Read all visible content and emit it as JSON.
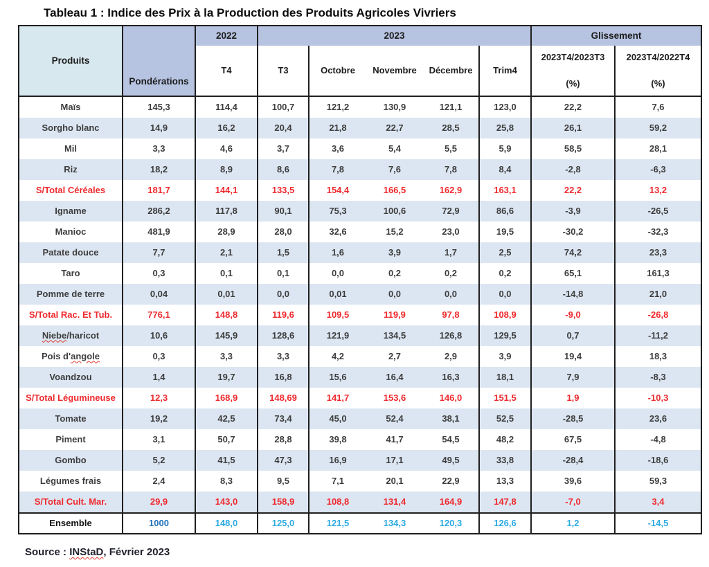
{
  "title": "Tableau 1 : Indice des Prix à la Production des Produits Agricoles Vivriers",
  "source": {
    "prefix": "Source : ",
    "org": "INStaD",
    "suffix": ", Février 2023"
  },
  "colors": {
    "periwinkle": "#b7c4e1",
    "palecyan": "#d7e8ee",
    "stripe": "#dce6f2",
    "ink": "#3d3d3d",
    "red": "#ee2a2e",
    "cyan": "#2baae2",
    "darkblue": "#2272b8"
  },
  "table": {
    "col_groups": {
      "y2022": "2022",
      "y2023": "2023",
      "glissement": "Glissement"
    },
    "headers": {
      "produits": "Produits",
      "ponderations": "Pondérations",
      "t4": "T4",
      "t3": "T3",
      "octobre": "Octobre",
      "novembre": "Novembre",
      "decembre": "Décembre",
      "trim4": "Trim4",
      "g1_line1": "2023T4/2023T3",
      "g2_line1": "2023T4/2022T4",
      "g_pct": "(%)"
    },
    "rows": [
      {
        "label": "Maïs",
        "style": "normal",
        "values": [
          "145,3",
          "114,4",
          "100,7",
          "121,2",
          "130,9",
          "121,1",
          "123,0",
          "22,2",
          "7,6"
        ]
      },
      {
        "label": "Sorgho blanc",
        "style": "normal",
        "values": [
          "14,9",
          "16,2",
          "20,4",
          "21,8",
          "22,7",
          "28,5",
          "25,8",
          "26,1",
          "59,2"
        ]
      },
      {
        "label": "Mil",
        "style": "normal",
        "values": [
          "3,3",
          "4,6",
          "3,7",
          "3,6",
          "5,4",
          "5,5",
          "5,9",
          "58,5",
          "28,1"
        ]
      },
      {
        "label": "Riz",
        "style": "normal",
        "values": [
          "18,2",
          "8,9",
          "8,6",
          "7,8",
          "7,6",
          "7,8",
          "8,4",
          "-2,8",
          "-6,3"
        ]
      },
      {
        "label": "S/Total Céréales",
        "style": "subtotal",
        "values": [
          "181,7",
          "144,1",
          "133,5",
          "154,4",
          "166,5",
          "162,9",
          "163,1",
          "22,2",
          "13,2"
        ]
      },
      {
        "label": "Igname",
        "style": "normal",
        "values": [
          "286,2",
          "117,8",
          "90,1",
          "75,3",
          "100,6",
          "72,9",
          "86,6",
          "-3,9",
          "-26,5"
        ]
      },
      {
        "label": "Manioc",
        "style": "normal",
        "values": [
          "481,9",
          "28,9",
          "28,0",
          "32,6",
          "15,2",
          "23,0",
          "19,5",
          "-30,2",
          "-32,3"
        ]
      },
      {
        "label": "Patate douce",
        "style": "normal",
        "values": [
          "7,7",
          "2,1",
          "1,5",
          "1,6",
          "3,9",
          "1,7",
          "2,5",
          "74,2",
          "23,3"
        ]
      },
      {
        "label": "Taro",
        "style": "normal",
        "values": [
          "0,3",
          "0,1",
          "0,1",
          "0,0",
          "0,2",
          "0,2",
          "0,2",
          "65,1",
          "161,3"
        ]
      },
      {
        "label": "Pomme de terre",
        "style": "normal",
        "values": [
          "0,04",
          "0,01",
          "0,0",
          "0,01",
          "0,0",
          "0,0",
          "0,0",
          "-14,8",
          "21,0"
        ]
      },
      {
        "label": "S/Total Rac. Et Tub.",
        "style": "subtotal",
        "values": [
          "776,1",
          "148,8",
          "119,6",
          "109,5",
          "119,9",
          "97,8",
          "108,9",
          "-9,0",
          "-26,8"
        ]
      },
      {
        "label": "Niebe/haricot",
        "wavy": "Niebe",
        "style": "normal",
        "values": [
          "10,6",
          "145,9",
          "128,6",
          "121,9",
          "134,5",
          "126,8",
          "129,5",
          "0,7",
          "-11,2"
        ]
      },
      {
        "label": "Pois d'angole",
        "wavy": "angole",
        "style": "normal",
        "values": [
          "0,3",
          "3,3",
          "3,3",
          "4,2",
          "2,7",
          "2,9",
          "3,9",
          "19,4",
          "18,3"
        ]
      },
      {
        "label": "Voandzou",
        "style": "normal",
        "values": [
          "1,4",
          "19,7",
          "16,8",
          "15,6",
          "16,4",
          "16,3",
          "18,1",
          "7,9",
          "-8,3"
        ]
      },
      {
        "label": "S/Total Légumineuse",
        "style": "subtotal",
        "values": [
          "12,3",
          "168,9",
          "148,69",
          "141,7",
          "153,6",
          "146,0",
          "151,5",
          "1,9",
          "-10,3"
        ]
      },
      {
        "label": "Tomate",
        "style": "normal",
        "values": [
          "19,2",
          "42,5",
          "73,4",
          "45,0",
          "52,4",
          "38,1",
          "52,5",
          "-28,5",
          "23,6"
        ]
      },
      {
        "label": "Piment",
        "style": "normal",
        "values": [
          "3,1",
          "50,7",
          "28,8",
          "39,8",
          "41,7",
          "54,5",
          "48,2",
          "67,5",
          "-4,8"
        ]
      },
      {
        "label": "Gombo",
        "style": "normal",
        "values": [
          "5,2",
          "41,5",
          "47,3",
          "16,9",
          "17,1",
          "49,5",
          "33,8",
          "-28,4",
          "-18,6"
        ]
      },
      {
        "label": "Légumes frais",
        "style": "normal",
        "values": [
          "2,4",
          "8,3",
          "9,5",
          "7,1",
          "20,1",
          "22,9",
          "13,3",
          "39,6",
          "59,3"
        ]
      },
      {
        "label": "S/Total Cult. Mar.",
        "style": "subtotal",
        "values": [
          "29,9",
          "143,0",
          "158,9",
          "108,8",
          "131,4",
          "164,9",
          "147,8",
          "-7,0",
          "3,4"
        ]
      },
      {
        "label": "Ensemble",
        "style": "ensemble",
        "values": [
          "1000",
          "148,0",
          "125,0",
          "121,5",
          "134,3",
          "120,3",
          "126,6",
          "1,2",
          "-14,5"
        ]
      }
    ]
  }
}
